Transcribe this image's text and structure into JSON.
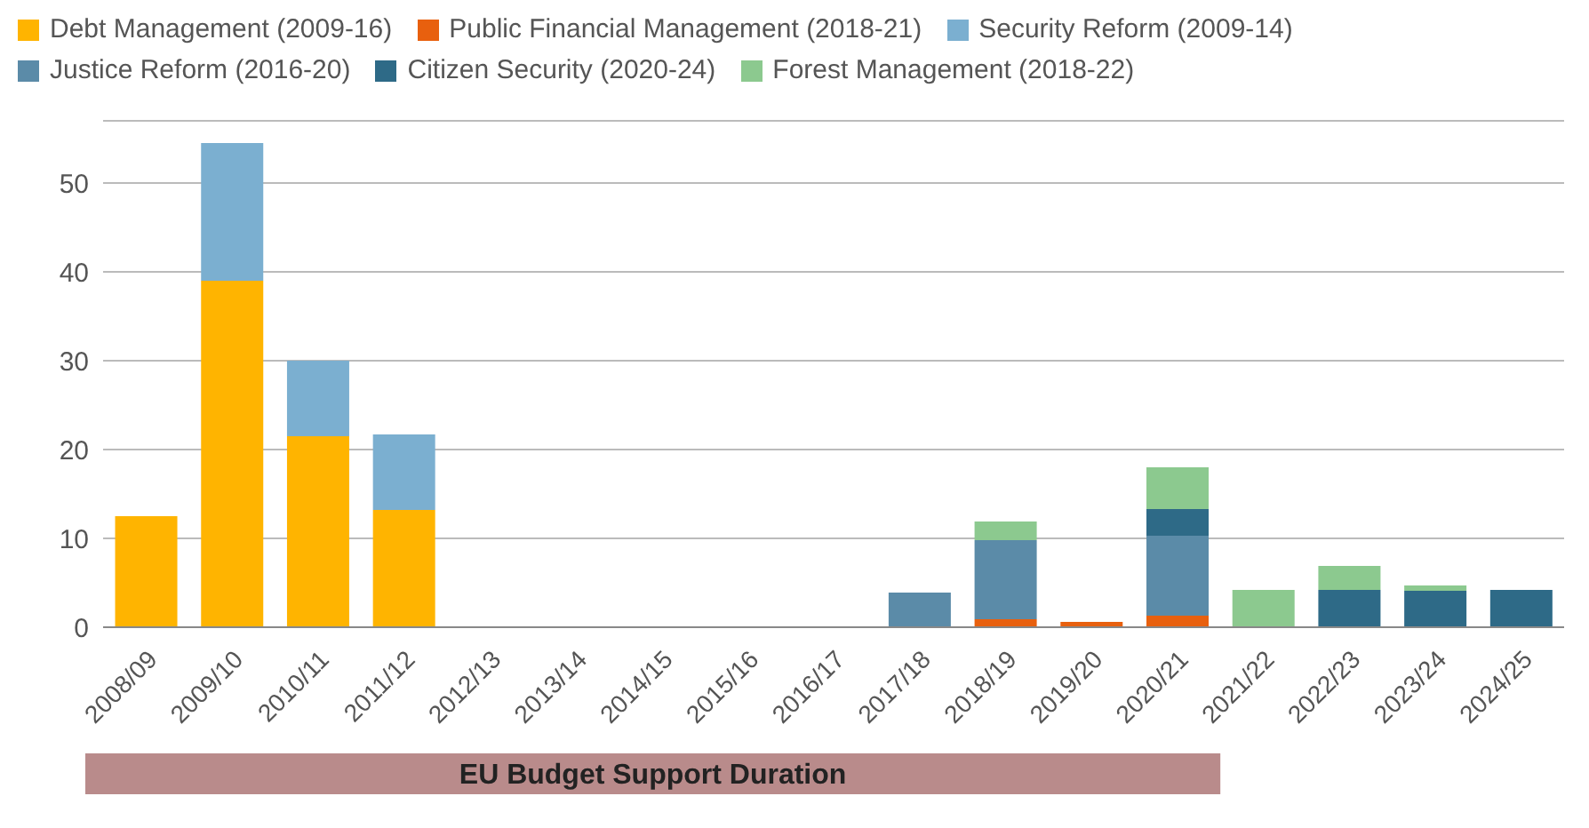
{
  "chart_data": {
    "type": "bar",
    "stacked": true,
    "categories": [
      "2008/09",
      "2009/10",
      "2010/11",
      "2011/12",
      "2012/13",
      "2013/14",
      "2014/15",
      "2015/16",
      "2016/17",
      "2017/18",
      "2018/19",
      "2019/20",
      "2020/21",
      "2021/22",
      "2022/23",
      "2023/24",
      "2024/25"
    ],
    "series": [
      {
        "name": "Debt Management (2009-16)",
        "color": "#ffb400",
        "values": [
          12.5,
          39,
          21.5,
          13.2,
          null,
          null,
          null,
          null,
          null,
          null,
          null,
          null,
          null,
          null,
          null,
          null,
          null
        ]
      },
      {
        "name": "Public Financial Management (2018-21)",
        "color": "#e8600e",
        "values": [
          null,
          null,
          null,
          null,
          null,
          null,
          null,
          null,
          null,
          null,
          0.9,
          0.6,
          1.3,
          null,
          null,
          null,
          null
        ]
      },
      {
        "name": "Security Reform (2009-14)",
        "color": "#7bafd0",
        "values": [
          null,
          15.5,
          8.5,
          8.5,
          null,
          null,
          null,
          null,
          null,
          null,
          null,
          null,
          null,
          null,
          null,
          null,
          null
        ]
      },
      {
        "name": "Justice Reform (2016-20)",
        "color": "#5b8ba8",
        "values": [
          null,
          null,
          null,
          null,
          null,
          null,
          null,
          null,
          null,
          3.9,
          8.9,
          null,
          9,
          null,
          null,
          null,
          null
        ]
      },
      {
        "name": "Citizen Security (2020-24)",
        "color": "#2e6a87",
        "values": [
          null,
          null,
          null,
          null,
          null,
          null,
          null,
          null,
          null,
          null,
          null,
          null,
          3,
          null,
          4.2,
          4.1,
          4.2
        ]
      },
      {
        "name": "Forest Management (2018-22)",
        "color": "#8cc98f",
        "values": [
          null,
          null,
          null,
          null,
          null,
          null,
          null,
          null,
          null,
          null,
          2.1,
          null,
          4.7,
          4.2,
          2.7,
          0.6,
          null
        ]
      }
    ],
    "ylim": [
      0,
      57
    ],
    "yticks": [
      0,
      10,
      20,
      30,
      40,
      50
    ],
    "grid": "y",
    "legend": "top left",
    "annotations": [
      "EU Budget Support Duration"
    ]
  }
}
